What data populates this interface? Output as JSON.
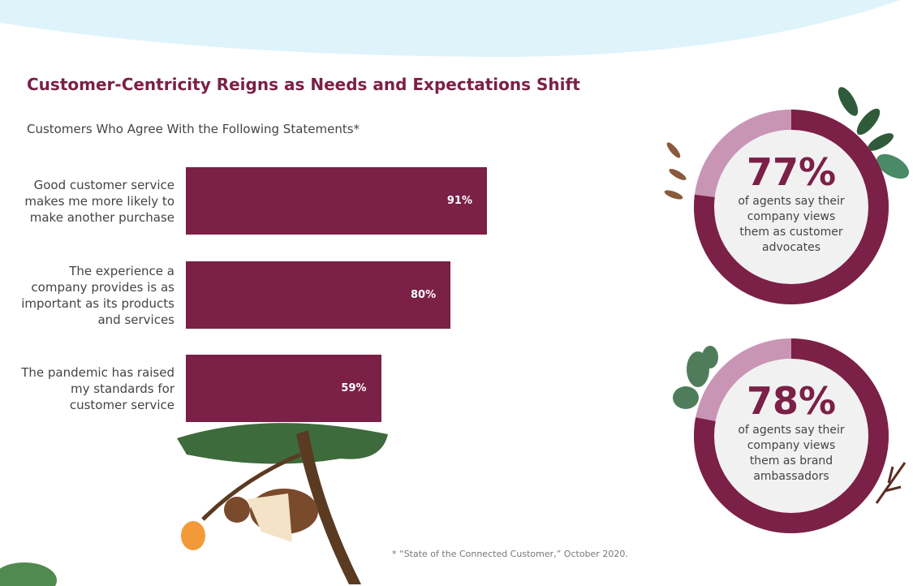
{
  "chart_data": [
    {
      "type": "bar",
      "title": "Customer-Centricity Reigns as Needs and Expectations Shift",
      "subtitle": "Customers Who Agree With the Following Statements*",
      "categories": [
        "Good customer service makes me more likely to make another purchase",
        "The experience a company provides is as important as its products and services",
        "The pandemic has raised my standards for customer service"
      ],
      "values": [
        91,
        80,
        59
      ],
      "value_labels": [
        "91%",
        "80%",
        "59%"
      ],
      "color": "#7b2046",
      "note": "* “State of the Connected Customer,” October 2020."
    },
    {
      "type": "donut",
      "value": 77,
      "value_label": "77%",
      "caption": "of agents say their company views them as customer advocates",
      "color": "#7b2046",
      "rest_color": "#c995b5"
    },
    {
      "type": "donut",
      "value": 78,
      "value_label": "78%",
      "caption": "of agents say their company views them as brand ambassadors",
      "color": "#7b2046",
      "rest_color": "#c995b5"
    }
  ]
}
